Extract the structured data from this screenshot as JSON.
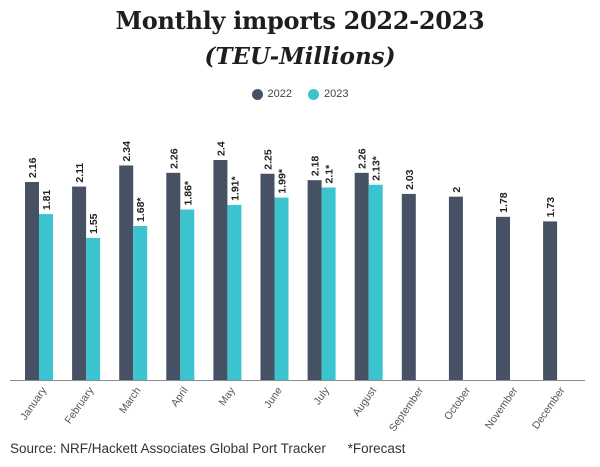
{
  "chart_data": {
    "type": "bar",
    "title": "Monthly imports 2022-2023",
    "subtitle": "(TEU-Millions)",
    "categories": [
      "January",
      "February",
      "March",
      "April",
      "May",
      "June",
      "July",
      "August",
      "September",
      "October",
      "November",
      "December"
    ],
    "series": [
      {
        "name": "2022",
        "color": "#465163",
        "values": [
          2.16,
          2.11,
          2.34,
          2.26,
          2.4,
          2.25,
          2.18,
          2.26,
          2.03,
          2,
          1.78,
          1.73
        ],
        "labels": [
          "2.16",
          "2.11",
          "2.34",
          "2.26",
          "2.4",
          "2.25",
          "2.18",
          "2.26",
          "2.03",
          "2",
          "1.78",
          "1.73"
        ]
      },
      {
        "name": "2023",
        "color": "#3bc4cf",
        "values": [
          1.81,
          1.55,
          1.68,
          1.86,
          1.91,
          1.99,
          2.1,
          2.13,
          null,
          null,
          null,
          null
        ],
        "labels": [
          "1.81",
          "1.55",
          "1.68*",
          "1.86*",
          "1.91*",
          "1.99*",
          "2.1*",
          "2.13*",
          null,
          null,
          null,
          null
        ]
      }
    ],
    "ylim": [
      0,
      2.4
    ],
    "grid": false,
    "legend_position": "top-center",
    "xlabel": "",
    "ylabel": ""
  },
  "footer": {
    "source": "Source: NRF/Hackett Associates Global Port Tracker",
    "forecast_note": "*Forecast"
  }
}
